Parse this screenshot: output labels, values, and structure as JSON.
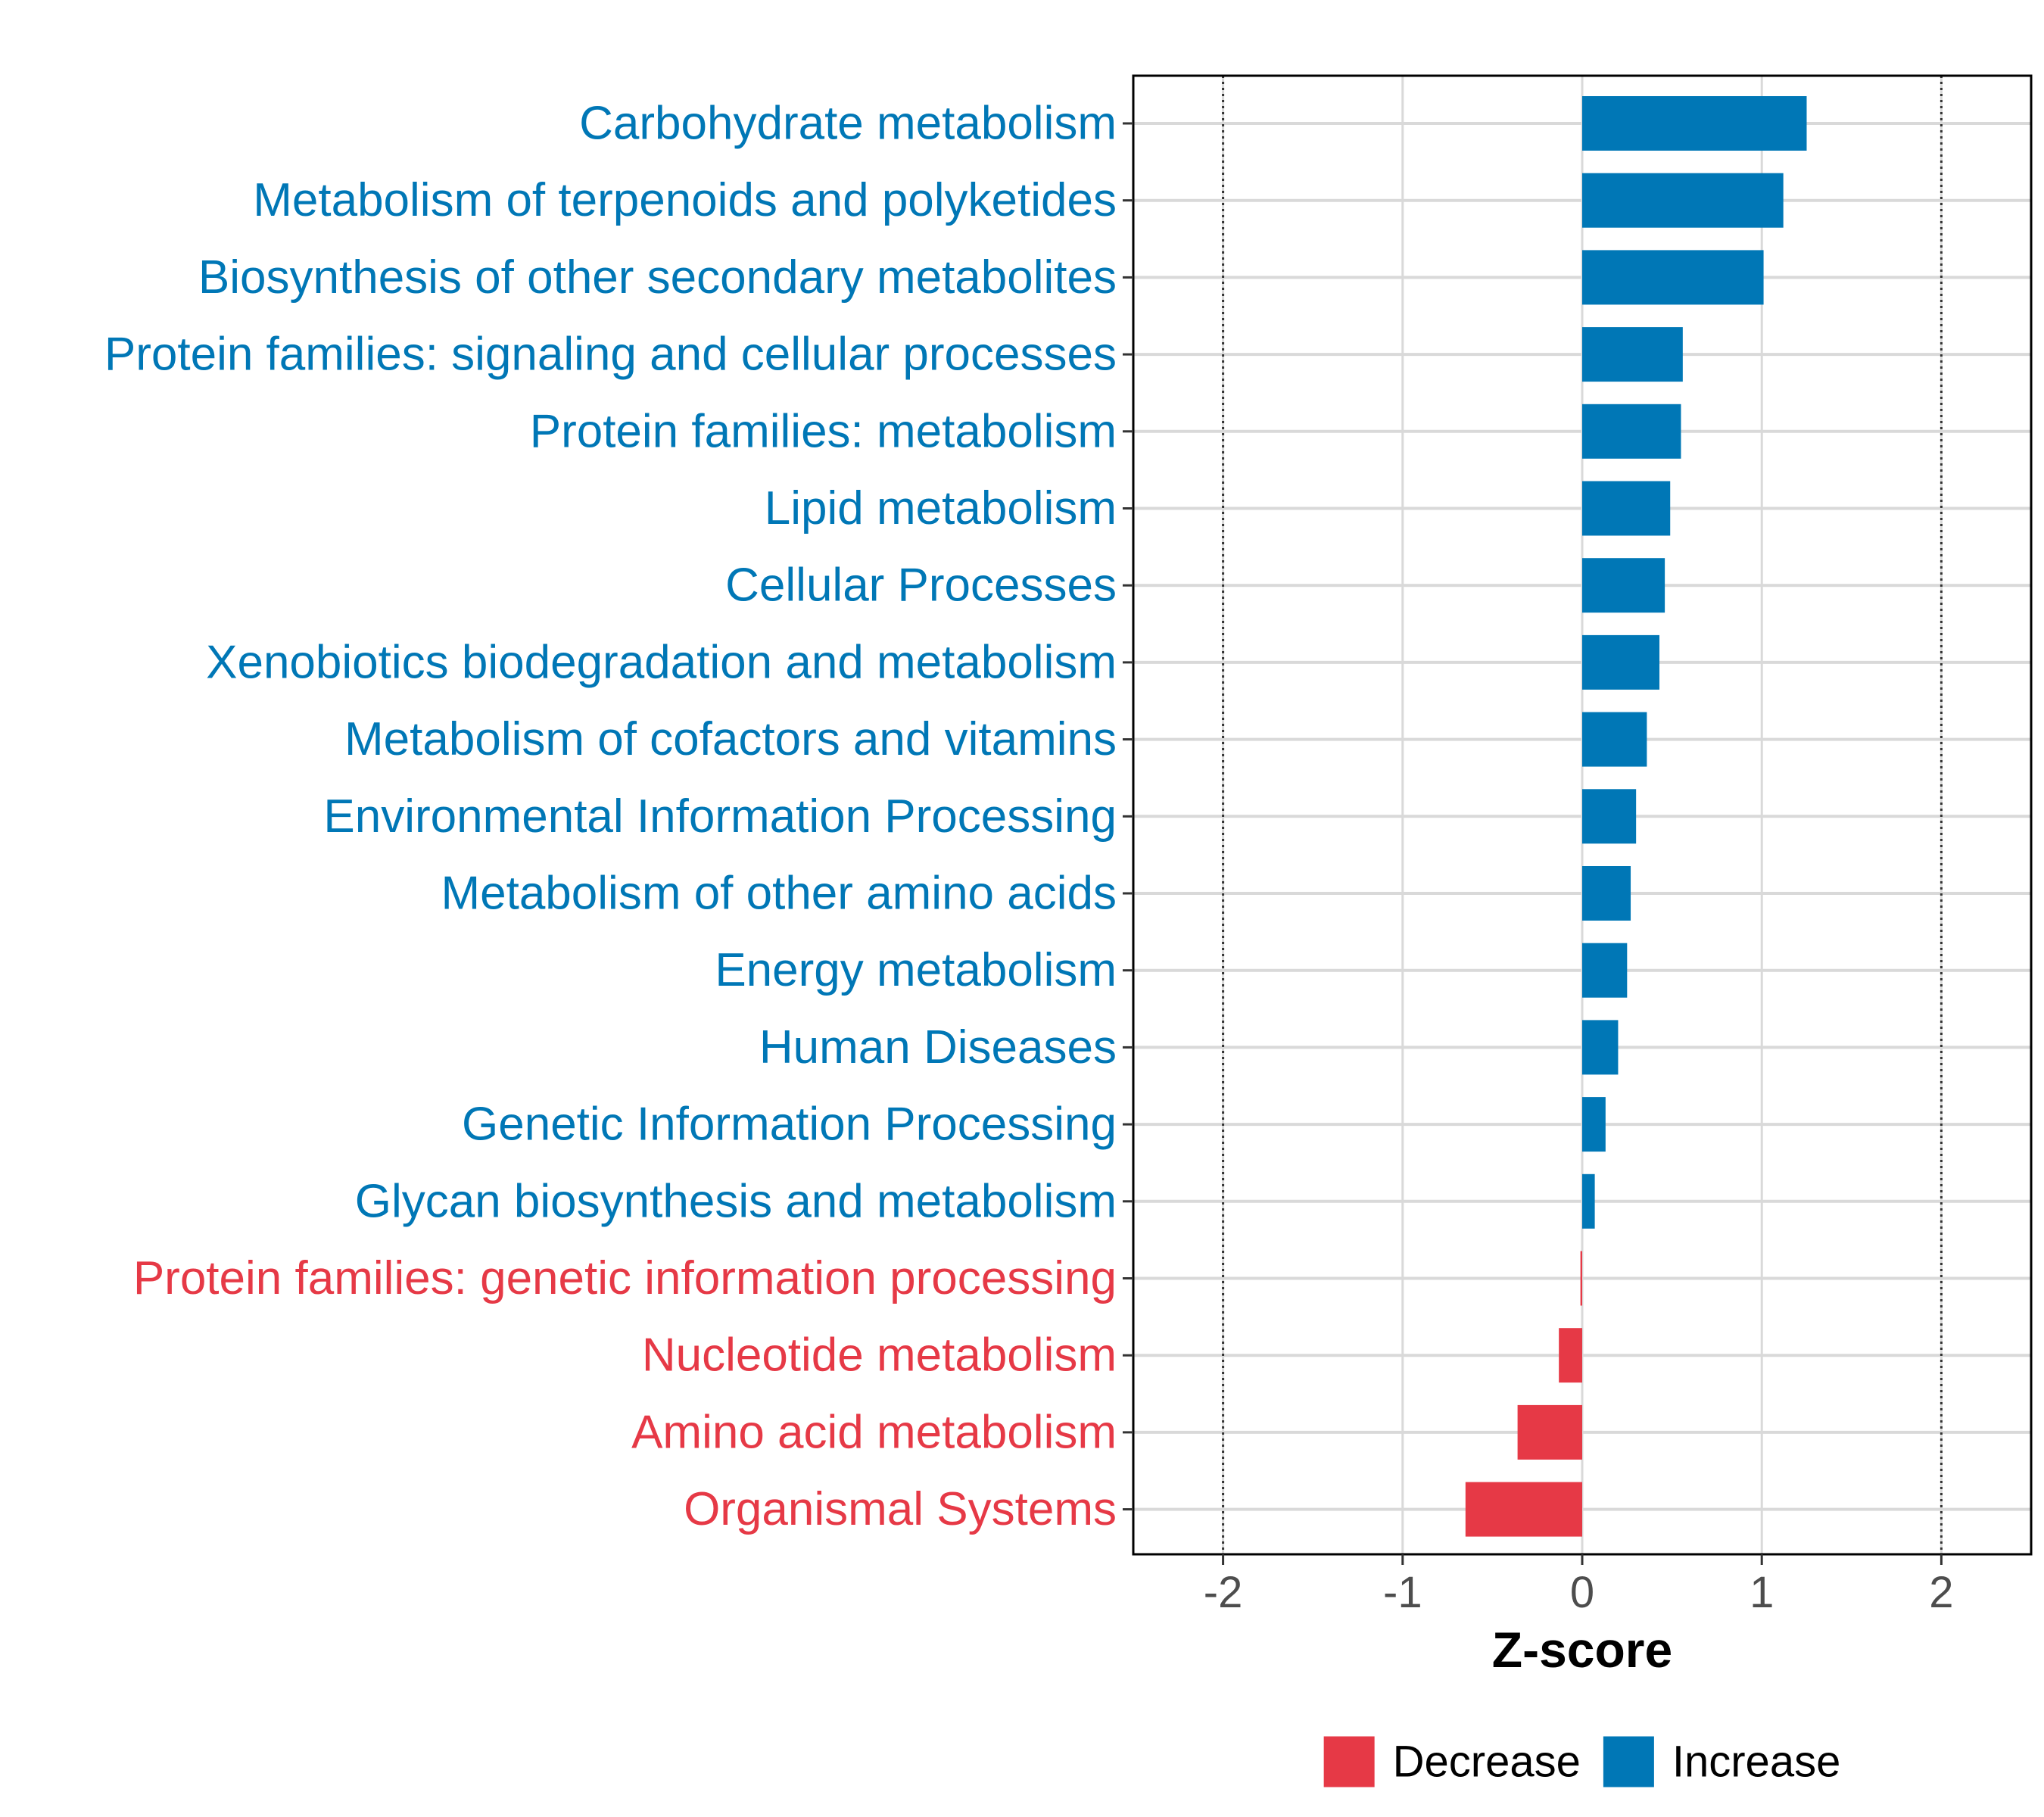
{
  "chart_data": {
    "type": "bar",
    "orientation": "horizontal",
    "title": "",
    "xlabel": "Z-score",
    "ylabel": "",
    "xlim": [
      -2.5,
      2.5
    ],
    "xticks": [
      -2,
      -1,
      0,
      1,
      2
    ],
    "xtick_labels": [
      "-2",
      "-1",
      "0",
      "1",
      "2"
    ],
    "reference_lines": [
      -2,
      2
    ],
    "grid": true,
    "categories": [
      "Carbohydrate metabolism",
      "Metabolism of terpenoids and polyketides",
      "Biosynthesis of other secondary metabolites",
      "Protein families: signaling and cellular processes",
      "Protein families: metabolism",
      "Lipid metabolism",
      "Cellular Processes",
      "Xenobiotics biodegradation and metabolism",
      "Metabolism of cofactors and vitamins",
      "Environmental Information Processing",
      "Metabolism of other amino acids",
      "Energy metabolism",
      "Human Diseases",
      "Genetic Information Processing",
      "Glycan biosynthesis and metabolism",
      "Protein families: genetic information processing",
      "Nucleotide metabolism",
      "Amino acid metabolism",
      "Organismal Systems"
    ],
    "values": [
      1.25,
      1.12,
      1.01,
      0.56,
      0.55,
      0.49,
      0.46,
      0.43,
      0.36,
      0.3,
      0.27,
      0.25,
      0.2,
      0.13,
      0.07,
      -0.01,
      -0.13,
      -0.36,
      -0.65
    ],
    "groups": [
      "Increase",
      "Increase",
      "Increase",
      "Increase",
      "Increase",
      "Increase",
      "Increase",
      "Increase",
      "Increase",
      "Increase",
      "Increase",
      "Increase",
      "Increase",
      "Increase",
      "Increase",
      "Decrease",
      "Decrease",
      "Decrease",
      "Decrease"
    ],
    "legend": {
      "position": "bottom",
      "entries": [
        {
          "name": "Decrease",
          "color": "#E63946"
        },
        {
          "name": "Increase",
          "color": "#0077B6"
        }
      ]
    }
  }
}
